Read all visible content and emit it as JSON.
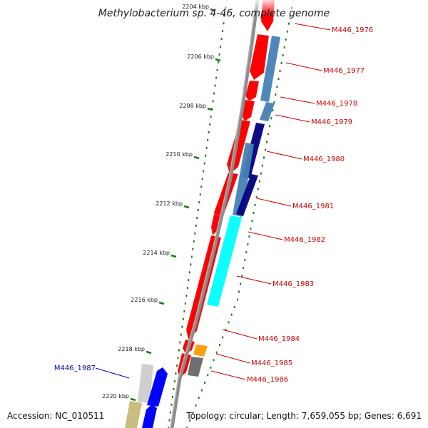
{
  "title": "Methylobacterium sp. 4-46, complete genome",
  "footer": {
    "accession": "Accession: NC_010511",
    "summary": "Topology: circular; Length: 7,659,055 bp; Genes: 6,691"
  },
  "colors": {
    "forward_gene": "#ff0000",
    "reverse_gene": "#0000ff",
    "label_forward": "#cc0000",
    "label_reverse": "#0000cc",
    "backbone": "#8c8c8c",
    "tick": "#1b7a1b"
  },
  "kbp_ticks": [
    "2204 kbp",
    "2206 kbp",
    "2208 kbp",
    "2210 kbp",
    "2212 kbp",
    "2214 kbp",
    "2216 kbp",
    "2218 kbp",
    "2220 kbp"
  ],
  "genes": [
    {
      "label": "M446_1976",
      "strand": "forward",
      "cog_color": "#ffffff"
    },
    {
      "label": "M446_1977",
      "strand": "forward",
      "cog_color": "#4682b4"
    },
    {
      "label": "M446_1978",
      "strand": "forward",
      "cog_color": "#4682b4"
    },
    {
      "label": "M446_1979",
      "strand": "forward",
      "cog_color": "#000080"
    },
    {
      "label": "M446_1980",
      "strand": "forward",
      "cog_color": "#4682b4"
    },
    {
      "label": "M446_1981",
      "strand": "forward",
      "cog_color": "#000080"
    },
    {
      "label": "M446_1982",
      "strand": "forward",
      "cog_color": "#00ffff"
    },
    {
      "label": "M446_1983",
      "strand": "forward",
      "cog_color": "#00ffff"
    },
    {
      "label": "M446_1984",
      "strand": "forward",
      "cog_color": "#ff0000"
    },
    {
      "label": "M446_1985",
      "strand": "forward",
      "cog_color": "#ff9900"
    },
    {
      "label": "M446_1986",
      "strand": "forward",
      "cog_color": "#666666"
    },
    {
      "label": "M446_1987",
      "strand": "reverse",
      "cog_color": "#cccccc"
    }
  ]
}
